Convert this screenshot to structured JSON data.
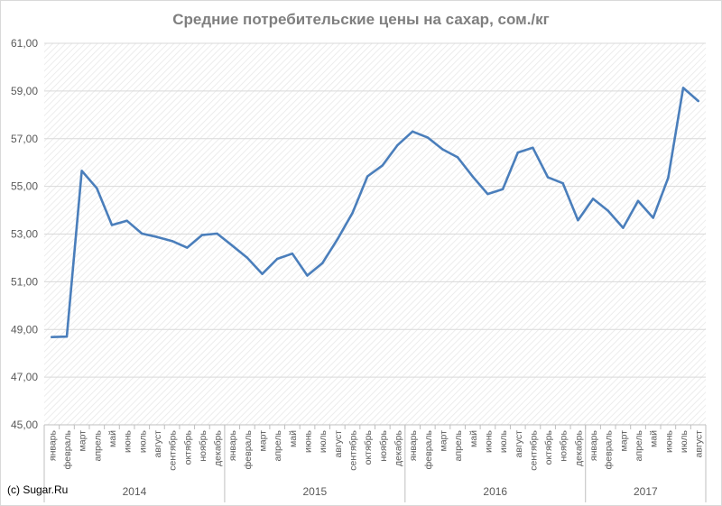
{
  "chart_data": {
    "type": "line",
    "title": "Средние потребительские цены на сахар, сом./кг",
    "ylim": [
      45,
      61
    ],
    "yticks": [
      "45,00",
      "47,00",
      "49,00",
      "51,00",
      "53,00",
      "55,00",
      "57,00",
      "59,00",
      "61,00"
    ],
    "grid": true,
    "plot_background": "diagonal-hatch",
    "line_color": "#4a7ebb",
    "months": [
      "январь",
      "февраль",
      "март",
      "апрель",
      "май",
      "июнь",
      "июль",
      "август",
      "сентябрь",
      "октябрь",
      "ноябрь",
      "декабрь"
    ],
    "years": [
      {
        "label": "2014",
        "months": 12
      },
      {
        "label": "2015",
        "months": 12
      },
      {
        "label": "2016",
        "months": 12
      },
      {
        "label": "2017",
        "months": 8
      }
    ],
    "categories": [
      "январь 2014",
      "февраль 2014",
      "март 2014",
      "апрель 2014",
      "май 2014",
      "июнь 2014",
      "июль 2014",
      "август 2014",
      "сентябрь 2014",
      "октябрь 2014",
      "ноябрь 2014",
      "декабрь 2014",
      "январь 2015",
      "февраль 2015",
      "март 2015",
      "апрель 2015",
      "май 2015",
      "июнь 2015",
      "июль 2015",
      "август 2015",
      "сентябрь 2015",
      "октябрь 2015",
      "ноябрь 2015",
      "декабрь 2015",
      "январь 2016",
      "февраль 2016",
      "март 2016",
      "апрель 2016",
      "май 2016",
      "июнь 2016",
      "июль 2016",
      "август 2016",
      "сентябрь 2016",
      "октябрь 2016",
      "ноябрь 2016",
      "декабрь 2016",
      "январь 2017",
      "февраль 2017",
      "март 2017",
      "апрель 2017",
      "май 2017",
      "июнь 2017",
      "июль 2017",
      "август 2017"
    ],
    "values": [
      48.68,
      48.7,
      55.65,
      54.92,
      53.38,
      53.56,
      53.02,
      52.88,
      52.71,
      52.43,
      52.96,
      53.02,
      52.52,
      52.01,
      51.33,
      51.96,
      52.18,
      51.26,
      51.78,
      52.78,
      53.88,
      55.42,
      55.88,
      56.73,
      57.3,
      57.05,
      56.55,
      56.22,
      55.41,
      54.68,
      54.88,
      56.42,
      56.62,
      55.38,
      55.13,
      53.58,
      54.48,
      53.98,
      53.26,
      54.39,
      53.68,
      55.36,
      59.13,
      58.58
    ]
  },
  "copyright": "(c) Sugar.Ru"
}
